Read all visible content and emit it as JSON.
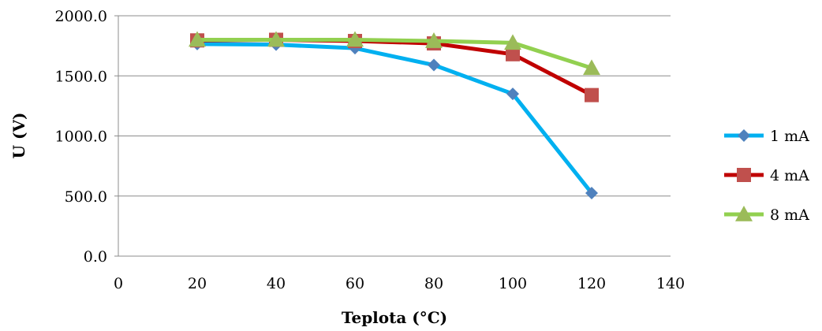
{
  "chart_data": {
    "type": "line",
    "title": "",
    "xlabel": "Teplota (°C)",
    "ylabel": "U (V)",
    "xlim": [
      0,
      140
    ],
    "ylim": [
      0,
      2000
    ],
    "x_ticks": [
      "0",
      "20",
      "40",
      "60",
      "80",
      "100",
      "120",
      "140"
    ],
    "y_ticks": [
      "0.0",
      "500.0",
      "1000.0",
      "1500.0",
      "2000.0"
    ],
    "grid": "horizontal",
    "legend_position": "right",
    "x": [
      20,
      40,
      60,
      80,
      100,
      120
    ],
    "series": [
      {
        "name": "1 mA",
        "marker": "diamond",
        "line_color": "#00B0F0",
        "marker_color": "#4F81BD",
        "values": [
          1765,
          1760,
          1730,
          1590,
          1350,
          525
        ]
      },
      {
        "name": "4 mA",
        "marker": "square",
        "line_color": "#C00000",
        "marker_color": "#C0504D",
        "values": [
          1795,
          1800,
          1790,
          1770,
          1680,
          1340
        ]
      },
      {
        "name": "8 mA",
        "marker": "triangle",
        "line_color": "#92D050",
        "marker_color": "#9BBB59",
        "values": [
          1800,
          1800,
          1800,
          1790,
          1775,
          1565
        ]
      }
    ]
  }
}
